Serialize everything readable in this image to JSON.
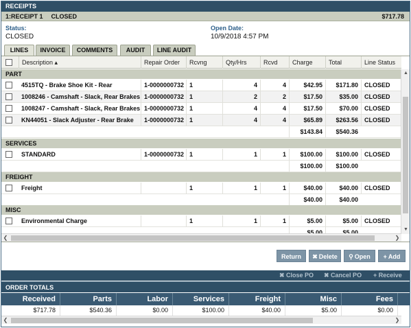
{
  "window_title": "RECEIPTS",
  "receipt_bar": {
    "id": "1:RECEIPT 1",
    "status": "CLOSED",
    "amount": "$717.78"
  },
  "info": {
    "status_label": "Status:",
    "status_value": "CLOSED",
    "open_date_label": "Open Date:",
    "open_date_value": "10/9/2018 4:57 PM"
  },
  "tabs": [
    "LINES",
    "INVOICE",
    "COMMENTS",
    "AUDIT",
    "LINE AUDIT"
  ],
  "columns": [
    "Description",
    "Repair Order",
    "Rcvng Shop",
    "Qty/Hrs",
    "Rcvd",
    "Charge",
    "Total",
    "Line Status"
  ],
  "groups": {
    "part": {
      "label": "PART",
      "rows": [
        [
          "4515TQ - Brake Shoe Kit - Rear",
          "1-0000000732",
          "1",
          "4",
          "4",
          "$42.95",
          "$171.80",
          "CLOSED"
        ],
        [
          "1008246 - Camshaft - Slack, Rear Brakes",
          "1-0000000732",
          "1",
          "2",
          "2",
          "$17.50",
          "$35.00",
          "CLOSED"
        ],
        [
          "1008247 - Camshaft - Slack, Rear Brakes",
          "1-0000000732",
          "1",
          "4",
          "4",
          "$17.50",
          "$70.00",
          "CLOSED"
        ],
        [
          "KN44051 - Slack Adjuster - Rear Brake",
          "1-0000000732",
          "1",
          "4",
          "4",
          "$65.89",
          "$263.56",
          "CLOSED"
        ]
      ],
      "subtotal_charge": "$143.84",
      "subtotal_total": "$540.36"
    },
    "services": {
      "label": "SERVICES",
      "rows": [
        [
          "STANDARD",
          "1-0000000732",
          "1",
          "1",
          "1",
          "$100.00",
          "$100.00",
          "CLOSED"
        ]
      ],
      "subtotal_charge": "$100.00",
      "subtotal_total": "$100.00"
    },
    "freight": {
      "label": "FREIGHT",
      "rows": [
        [
          "Freight",
          "",
          "1",
          "1",
          "1",
          "$40.00",
          "$40.00",
          "CLOSED"
        ]
      ],
      "subtotal_charge": "$40.00",
      "subtotal_total": "$40.00"
    },
    "misc": {
      "label": "MISC",
      "rows": [
        [
          "Environmental Charge",
          "",
          "1",
          "1",
          "1",
          "$5.00",
          "$5.00",
          "CLOSED"
        ]
      ],
      "subtotal_charge": "$5.00",
      "subtotal_total": "$5.00"
    }
  },
  "buttons": {
    "return": "Return",
    "delete": "Delete",
    "open": "Open",
    "add": "Add"
  },
  "po_actions": {
    "close_po": "Close PO",
    "cancel_po": "Cancel PO",
    "receive": "Receive"
  },
  "order_totals": {
    "title": "ORDER TOTALS",
    "headers": [
      "Received",
      "Parts",
      "Labor",
      "Services",
      "Freight",
      "Misc",
      "Fees"
    ],
    "values": [
      "$717.78",
      "$540.36",
      "$0.00",
      "$100.00",
      "$40.00",
      "$5.00",
      "$0.00"
    ]
  },
  "icons": {
    "sort": "sort-asc-icon",
    "delete": "x-icon",
    "open": "magnifier-icon",
    "add": "plus-icon"
  },
  "colors": {
    "header": "#2f4f66",
    "group_band": "#c9cdbf",
    "button": "#7d94a6",
    "label_blue": "#2d5f8a"
  }
}
